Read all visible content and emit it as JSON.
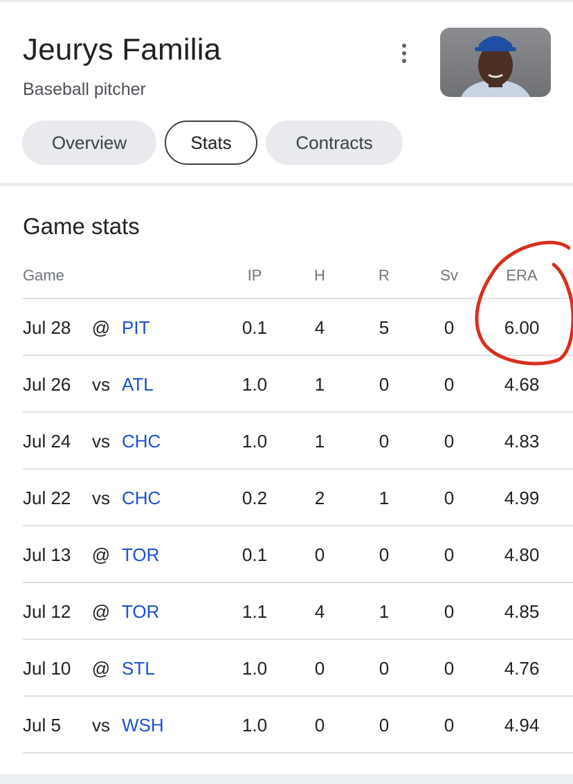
{
  "player": {
    "name": "Jeurys Familia",
    "description": "Baseball pitcher"
  },
  "tabs": [
    {
      "label": "Overview",
      "active": false
    },
    {
      "label": "Stats",
      "active": true
    },
    {
      "label": "Contracts",
      "active": false
    }
  ],
  "section": {
    "title": "Game stats"
  },
  "table": {
    "headers": [
      "Game",
      "IP",
      "H",
      "R",
      "Sv",
      "ERA"
    ],
    "rows": [
      {
        "date": "Jul 28",
        "loc": "@",
        "team": "PIT",
        "ip": "0.1",
        "h": "4",
        "r": "5",
        "sv": "0",
        "era": "6.00"
      },
      {
        "date": "Jul 26",
        "loc": "vs",
        "team": "ATL",
        "ip": "1.0",
        "h": "1",
        "r": "0",
        "sv": "0",
        "era": "4.68"
      },
      {
        "date": "Jul 24",
        "loc": "vs",
        "team": "CHC",
        "ip": "1.0",
        "h": "1",
        "r": "0",
        "sv": "0",
        "era": "4.83"
      },
      {
        "date": "Jul 22",
        "loc": "vs",
        "team": "CHC",
        "ip": "0.2",
        "h": "2",
        "r": "1",
        "sv": "0",
        "era": "4.99"
      },
      {
        "date": "Jul 13",
        "loc": "@",
        "team": "TOR",
        "ip": "0.1",
        "h": "0",
        "r": "0",
        "sv": "0",
        "era": "4.80"
      },
      {
        "date": "Jul 12",
        "loc": "@",
        "team": "TOR",
        "ip": "1.1",
        "h": "4",
        "r": "1",
        "sv": "0",
        "era": "4.85"
      },
      {
        "date": "Jul 10",
        "loc": "@",
        "team": "STL",
        "ip": "1.0",
        "h": "0",
        "r": "0",
        "sv": "0",
        "era": "4.76"
      },
      {
        "date": "Jul 5",
        "loc": "vs",
        "team": "WSH",
        "ip": "1.0",
        "h": "0",
        "r": "0",
        "sv": "0",
        "era": "4.94"
      }
    ]
  },
  "colors": {
    "link": "#1a4fd6",
    "annotation": "#d8301f",
    "chip_bg": "#e8eaed"
  }
}
